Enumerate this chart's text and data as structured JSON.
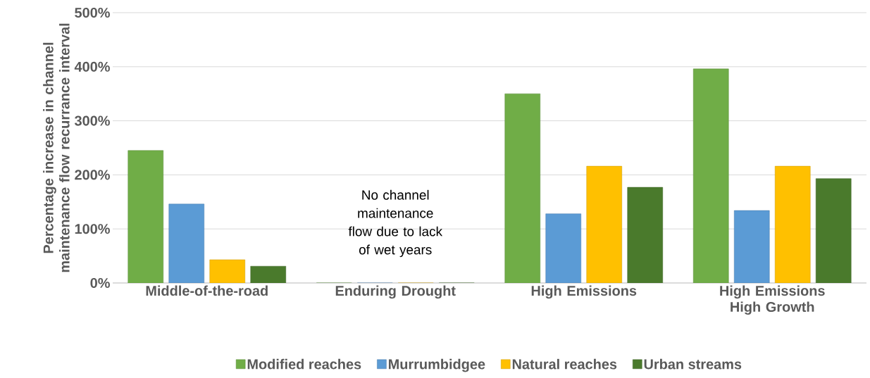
{
  "chart_data": {
    "type": "bar",
    "ylabel": "Percentage increase in channel maintenance flow recurrance interval",
    "categories": [
      "Middle-of-the-road",
      "Enduring Drought",
      "High Emissions",
      "High Emissions High Growth"
    ],
    "series": [
      {
        "name": "Modified reaches",
        "color": "#70ad47",
        "values": [
          245,
          0,
          350,
          396
        ]
      },
      {
        "name": "Murrumbidgee",
        "color": "#5b9bd5",
        "values": [
          146,
          0,
          128,
          134
        ]
      },
      {
        "name": "Natural reaches",
        "color": "#ffc000",
        "values": [
          43,
          0,
          216,
          216
        ]
      },
      {
        "name": "Urban streams",
        "color": "#4a7a2c",
        "values": [
          31,
          0,
          177,
          193
        ]
      }
    ],
    "ylim": [
      0,
      500
    ],
    "yticks": [
      {
        "value": 0,
        "label": "0%"
      },
      {
        "value": 100,
        "label": "100%"
      },
      {
        "value": 200,
        "label": "200%"
      },
      {
        "value": 300,
        "label": "300%"
      },
      {
        "value": 400,
        "label": "400%"
      },
      {
        "value": 500,
        "label": "500%"
      }
    ],
    "grid": "y",
    "legend": "bottom",
    "annotations": [
      "No channel maintenance flow due to lack of wet years"
    ]
  }
}
